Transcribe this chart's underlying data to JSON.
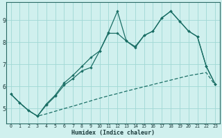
{
  "xlabel": "Humidex (Indice chaleur)",
  "bg_color": "#d0f0ee",
  "grid_color": "#a0d8d4",
  "line_color": "#1a6e65",
  "xlim": [
    -0.5,
    23.5
  ],
  "ylim": [
    4.3,
    9.8
  ],
  "xticks": [
    0,
    1,
    2,
    3,
    4,
    5,
    6,
    7,
    8,
    9,
    10,
    11,
    12,
    13,
    14,
    15,
    16,
    17,
    18,
    19,
    20,
    21,
    22,
    23
  ],
  "yticks": [
    5,
    6,
    7,
    8,
    9
  ],
  "line1_x": [
    0,
    1,
    2,
    3,
    4,
    5,
    6,
    7,
    8,
    9,
    10,
    11,
    12,
    13,
    14,
    15,
    16,
    17,
    18,
    19,
    20,
    21,
    22,
    23
  ],
  "line1_y": [
    5.65,
    5.25,
    4.9,
    4.65,
    4.75,
    4.87,
    4.99,
    5.1,
    5.22,
    5.34,
    5.46,
    5.57,
    5.67,
    5.78,
    5.88,
    5.98,
    6.08,
    6.18,
    6.28,
    6.38,
    6.48,
    6.55,
    6.62,
    6.05
  ],
  "line2_x": [
    0,
    1,
    2,
    3,
    4,
    5,
    6,
    7,
    8,
    9,
    10,
    11,
    12,
    13,
    14,
    15,
    16,
    17,
    18,
    19,
    20,
    21,
    22,
    23
  ],
  "line2_y": [
    5.65,
    5.25,
    4.9,
    4.65,
    5.15,
    5.55,
    6.05,
    6.35,
    6.7,
    6.85,
    7.6,
    8.45,
    9.4,
    8.05,
    7.8,
    8.3,
    8.5,
    9.1,
    9.4,
    8.95,
    8.5,
    8.25,
    6.9,
    6.1
  ],
  "line3_x": [
    0,
    1,
    2,
    3,
    4,
    5,
    6,
    7,
    8,
    9,
    10,
    11,
    12,
    13,
    14,
    15,
    16,
    17,
    18,
    19,
    20,
    21,
    22,
    23
  ],
  "line3_y": [
    5.65,
    5.25,
    4.9,
    4.65,
    5.2,
    5.6,
    6.15,
    6.5,
    6.9,
    7.3,
    7.6,
    8.4,
    8.4,
    8.05,
    7.75,
    8.3,
    8.5,
    9.1,
    9.4,
    8.95,
    8.5,
    8.25,
    6.9,
    6.1
  ]
}
